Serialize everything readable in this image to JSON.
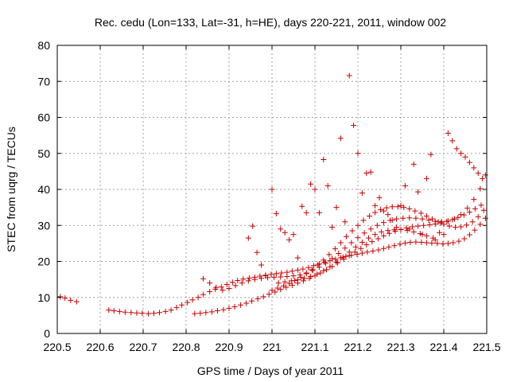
{
  "chart_data": {
    "type": "scatter",
    "title": "Rec. cedu (Lon=133, Lat=-31, h=HE), days 220-221, 2011, window 002",
    "xlabel": "GPS time / Days of year 2011",
    "ylabel": "STEC from uqrg / TECUs",
    "xlim": [
      220.5,
      221.5
    ],
    "ylim": [
      0,
      80
    ],
    "xticks": [
      220.5,
      220.6,
      220.7,
      220.8,
      220.9,
      221,
      221.1,
      221.2,
      221.3,
      221.4,
      221.5
    ],
    "xtick_labels": [
      "220.5",
      "220.6",
      "220.7",
      "220.8",
      "220.9",
      "221",
      "221.1",
      "221.2",
      "221.3",
      "221.4",
      "221.5"
    ],
    "yticks": [
      0,
      10,
      20,
      30,
      40,
      50,
      60,
      70,
      80
    ],
    "ytick_labels": [
      "0",
      "10",
      "20",
      "30",
      "40",
      "50",
      "60",
      "70",
      "80"
    ],
    "grid": true,
    "marker": "plus",
    "colors": {
      "points": "#cc0000",
      "grid": "#a0a0a0",
      "axes": "#000000"
    },
    "series": [
      {
        "x": [
          220.507,
          220.518,
          220.531,
          220.545,
          220.62,
          220.632,
          220.645,
          220.658,
          220.672,
          220.685,
          220.698,
          220.712,
          220.725,
          220.738,
          220.752,
          220.765,
          220.778,
          220.79,
          220.803,
          220.815,
          220.828,
          220.84,
          220.855,
          220.868,
          220.882,
          220.895,
          220.908,
          220.92,
          220.933,
          220.947,
          220.96,
          220.972,
          220.985,
          220.998,
          221.01,
          221.022,
          221.035,
          221.047,
          221.06,
          221.072,
          221.085,
          221.097,
          221.11,
          221.122,
          221.135,
          221.148,
          221.16,
          221.172,
          221.185,
          221.198,
          221.21,
          221.222,
          221.235,
          221.248,
          221.26,
          221.272,
          221.285,
          221.298,
          221.31,
          221.322,
          221.335,
          221.348,
          221.36,
          221.372,
          221.385,
          221.398,
          221.41,
          221.422,
          221.435,
          221.448,
          221.46,
          221.472,
          221.485,
          221.497
        ],
        "y": [
          10.2,
          9.8,
          9.2,
          8.8,
          6.5,
          6.3,
          6.1,
          5.9,
          5.8,
          5.7,
          5.6,
          5.5,
          5.6,
          5.8,
          6.1,
          6.5,
          7.2,
          7.9,
          8.6,
          9.3,
          10.0,
          10.8,
          11.6,
          12.3,
          12.9,
          13.6,
          14.2,
          14.7,
          15.1,
          15.4,
          15.6,
          15.9,
          16.2,
          16.4,
          16.6,
          16.8,
          17.0,
          17.3,
          17.6,
          17.9,
          18.3,
          18.8,
          19.3,
          19.8,
          20.2,
          20.6,
          21.0,
          21.4,
          21.7,
          22.0,
          22.3,
          22.6,
          22.9,
          23.2,
          23.6,
          24.0,
          24.4,
          24.8,
          25.1,
          25.3,
          25.4,
          25.3,
          25.2,
          25.1,
          25.0,
          24.9,
          25.0,
          25.2,
          25.6,
          26.3,
          27.4,
          28.7,
          30.3,
          32.0
        ]
      },
      {
        "x": [
          220.82,
          220.833,
          220.846,
          220.86,
          220.873,
          220.887,
          220.9,
          220.913,
          220.927,
          220.94,
          220.953,
          220.967,
          220.98,
          220.993,
          221.007,
          221.02,
          221.033,
          221.047,
          221.06,
          221.073,
          221.087,
          221.1,
          221.113,
          221.127,
          221.14,
          221.153,
          221.167,
          221.18,
          221.193,
          221.207,
          221.22,
          221.233,
          221.247,
          221.26,
          221.273,
          221.287,
          221.3,
          221.313,
          221.327,
          221.34,
          221.353,
          221.367,
          221.38,
          221.393,
          221.407,
          221.42,
          221.433,
          221.447,
          221.46,
          221.473,
          221.487
        ],
        "y": [
          5.5,
          5.6,
          5.8,
          6.0,
          6.3,
          6.6,
          7.0,
          7.4,
          7.9,
          8.4,
          9.0,
          9.6,
          10.2,
          10.9,
          11.5,
          12.2,
          12.8,
          13.4,
          14.0,
          14.6,
          15.3,
          16.0,
          16.8,
          17.7,
          18.6,
          19.6,
          20.6,
          21.6,
          22.6,
          23.6,
          24.6,
          25.5,
          26.3,
          27.1,
          27.8,
          28.4,
          28.9,
          29.3,
          29.6,
          29.8,
          30.0,
          30.2,
          30.4,
          30.7,
          31.1,
          31.6,
          32.2,
          32.9,
          33.7,
          34.6,
          35.6
        ]
      },
      {
        "x": [
          220.84,
          220.855,
          220.87,
          220.885,
          220.9,
          220.915,
          220.93,
          220.945,
          220.96,
          220.975,
          220.99,
          221.005,
          221.02,
          221.035,
          221.05,
          221.065,
          221.08,
          221.095,
          221.11,
          221.125,
          221.14,
          221.155,
          221.17,
          221.185,
          221.2,
          221.215,
          221.23,
          221.245,
          221.26,
          221.275,
          221.29,
          221.305,
          221.32,
          221.335,
          221.35,
          221.365,
          221.38,
          221.395,
          221.41,
          221.425,
          221.44,
          221.455,
          221.47,
          221.485,
          221.497
        ],
        "y": [
          15.2,
          14.0,
          12.8,
          12.0,
          12.5,
          13.3,
          14.0,
          14.6,
          15.0,
          15.3,
          15.5,
          15.6,
          15.7,
          15.8,
          16.0,
          16.3,
          16.8,
          17.5,
          18.4,
          19.5,
          20.8,
          22.2,
          23.7,
          25.2,
          26.6,
          27.9,
          29.0,
          30.0,
          30.8,
          31.4,
          31.8,
          32.0,
          32.1,
          32.0,
          31.8,
          31.5,
          31.2,
          31.0,
          31.2,
          31.8,
          33.0,
          34.8,
          37.2,
          40.2,
          44.0
        ]
      },
      {
        "x": [
          221.0,
          221.013,
          221.027,
          221.04,
          221.053,
          221.067,
          221.08,
          221.093,
          221.107,
          221.12,
          221.133,
          221.147,
          221.16,
          221.173,
          221.187,
          221.2,
          221.213,
          221.227,
          221.24,
          221.253,
          221.267,
          221.28,
          221.293,
          221.307,
          221.32,
          221.333,
          221.347,
          221.36,
          221.373,
          221.387,
          221.4,
          221.413,
          221.427,
          221.44,
          221.453,
          221.467,
          221.48,
          221.493
        ],
        "y": [
          12.0,
          12.6,
          13.2,
          13.9,
          14.7,
          15.6,
          16.6,
          17.7,
          19.0,
          20.4,
          21.9,
          23.5,
          25.2,
          26.9,
          28.5,
          30.0,
          31.4,
          32.6,
          33.6,
          34.4,
          34.9,
          35.2,
          35.2,
          35.0,
          34.6,
          34.0,
          33.4,
          32.6,
          31.8,
          31.0,
          30.3,
          29.8,
          29.5,
          29.6,
          30.1,
          31.0,
          32.4,
          34.2
        ]
      },
      {
        "x": [
          220.945,
          220.955,
          220.965,
          220.975,
          220.985,
          221.0,
          221.01,
          221.02,
          221.03,
          221.04,
          221.05,
          221.06,
          221.07,
          221.08,
          221.09,
          221.1,
          221.11,
          221.12,
          221.13,
          221.14,
          221.15,
          221.16,
          221.17,
          221.18,
          221.19,
          221.2,
          221.21,
          221.22,
          221.23,
          221.24,
          221.25,
          221.26,
          221.27,
          221.28,
          221.29,
          221.3,
          221.31,
          221.32,
          221.33,
          221.34,
          221.35,
          221.36,
          221.37,
          221.38,
          221.39,
          221.4,
          221.41,
          221.42,
          221.43,
          221.44,
          221.45,
          221.46,
          221.47,
          221.48,
          221.49
        ],
        "y": [
          26.5,
          29.8,
          22.5,
          19.0,
          16.0,
          40.0,
          33.3,
          29.0,
          28.0,
          26.0,
          27.5,
          21.0,
          35.3,
          33.5,
          41.5,
          40.0,
          33.5,
          48.3,
          41.0,
          29.5,
          35.0,
          54.2,
          31.0,
          71.6,
          57.8,
          50.0,
          39.0,
          44.5,
          44.8,
          35.5,
          37.7,
          34.0,
          33.0,
          31.5,
          29.5,
          35.5,
          41.0,
          29.0,
          47.0,
          39.3,
          27.5,
          43.0,
          49.7,
          26.0,
          28.0,
          27.5,
          55.6,
          53.5,
          51.3,
          50.0,
          49.0,
          47.5,
          46.0,
          44.5,
          43.0
        ]
      },
      {
        "x": [
          221.015,
          221.03,
          221.045,
          221.06,
          221.075,
          221.09,
          221.105,
          221.12,
          221.135,
          221.15,
          221.165,
          221.18,
          221.195,
          221.21,
          221.225,
          221.24,
          221.255,
          221.27,
          221.285,
          221.3,
          221.315,
          221.33,
          221.345,
          221.36,
          221.375
        ],
        "y": [
          14.0,
          14.3,
          14.6,
          14.9,
          15.3,
          15.8,
          16.5,
          17.4,
          18.5,
          19.8,
          21.2,
          22.6,
          24.0,
          25.3,
          26.5,
          27.5,
          28.2,
          28.6,
          28.8,
          28.8,
          28.6,
          28.2,
          27.7,
          27.1,
          26.5
        ]
      }
    ]
  }
}
